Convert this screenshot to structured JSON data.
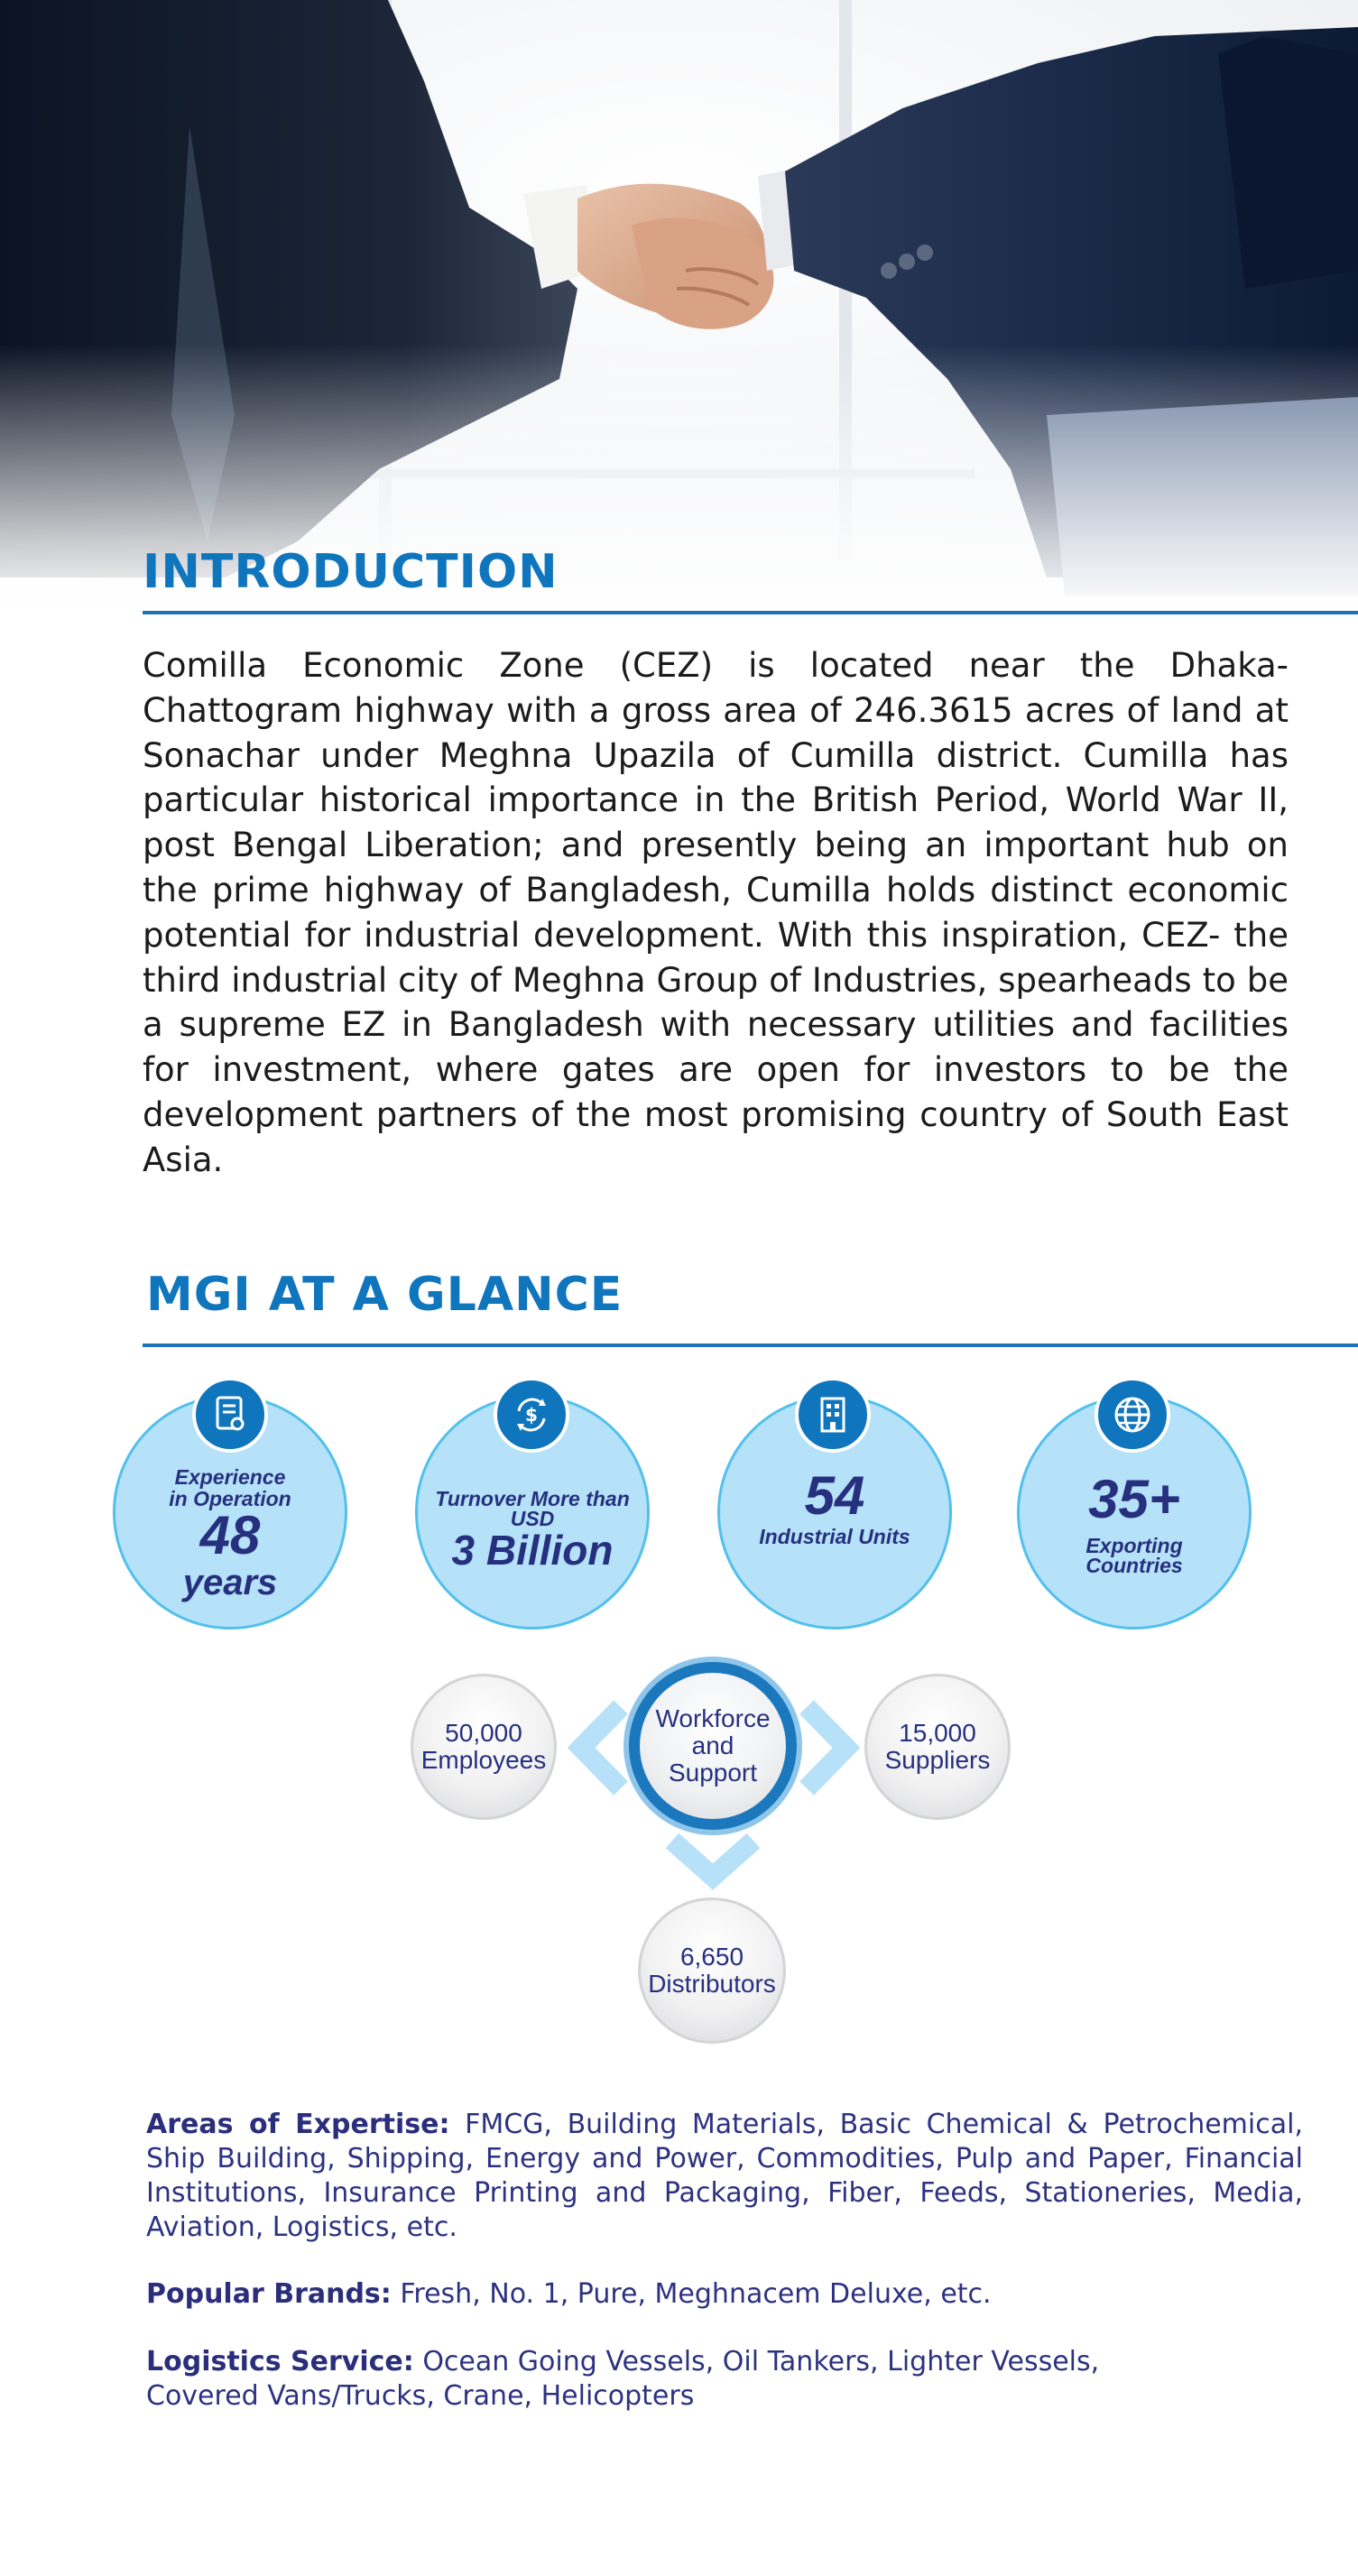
{
  "introduction": {
    "title": "INTRODUCTION",
    "body": "Comilla Economic Zone (CEZ) is located near the Dhaka-Chattogram highway with a gross area of 246.3615 acres of land at Sonachar under Meghna Upazila of Cumilla district. Cumilla has particular historical importance in the British Period, World War II, post Bengal Liberation; and presently being an important hub on the prime highway of Bangladesh, Cumilla holds distinct economic potential for industrial development. With this inspiration, CEZ- the third industrial city of Meghna Group of Industries, spearheads to be a supreme EZ in Bangladesh with necessary utilities and facilities for investment, where gates are open for investors to be the development partners of the most promising country of South East Asia."
  },
  "glance": {
    "title": "MGI AT A GLANCE",
    "stats": [
      {
        "icon": "certificate-icon",
        "line1": "Experience",
        "line2": "in Operation",
        "value": "48",
        "unit": "years"
      },
      {
        "icon": "dollar-cycle-icon",
        "line1": "Turnover More than",
        "line2": "USD",
        "value": "3 Billion"
      },
      {
        "icon": "building-icon",
        "value": "54",
        "line1": "Industrial Units"
      },
      {
        "icon": "globe-icon",
        "value": "35+",
        "line1": "Exporting",
        "line2": "Countries"
      }
    ],
    "network": {
      "hub": [
        "Workforce",
        "and",
        "Support"
      ],
      "employees": [
        "50,000",
        "Employees"
      ],
      "suppliers": [
        "15,000",
        "Suppliers"
      ],
      "distributors": [
        "6,650",
        "Distributors"
      ]
    }
  },
  "details": {
    "expertise_label": "Areas of Expertise:",
    "expertise_text": "FMCG, Building Materials, Basic Chemical & Petrochemical, Ship Building, Shipping, Energy and Power, Commodities, Pulp and Paper, Financial Institutions, Insurance Printing and Packaging, Fiber, Feeds, Stationeries, Media, Aviation, Logistics, etc.",
    "brands_label": "Popular Brands:",
    "brands_text": "Fresh, No. 1, Pure, Meghnacem Deluxe, etc.",
    "logistics_label": "Logistics Service:",
    "logistics_text": "Ocean Going Vessels, Oil Tankers, Lighter Vessels, Covered Vans/Trucks, Crane, Helicopters"
  },
  "colors": {
    "title_blue": "#0f75bc",
    "stat_fill": "#b5e2f8",
    "stat_border": "#52c0ec",
    "text_navy": "#26307f"
  }
}
